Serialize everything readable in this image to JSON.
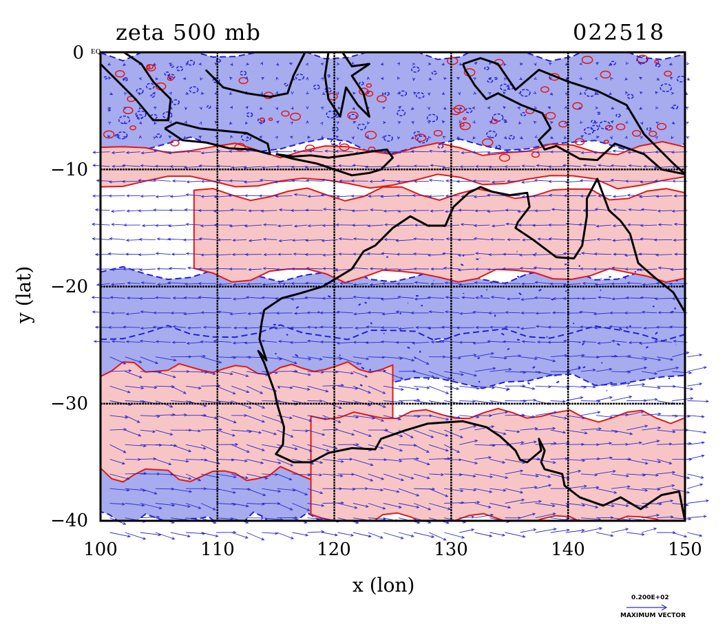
{
  "chart_data": {
    "type": "map",
    "title_left": "zeta 500 mb",
    "title_right": "022518",
    "xlabel": "x (lon)",
    "ylabel": "y (lat)",
    "xlim": [
      100,
      150
    ],
    "ylim": [
      -40,
      0
    ],
    "x_ticks": [
      "100",
      "110",
      "120",
      "130",
      "140",
      "150"
    ],
    "y_ticks": [
      "0",
      "−10",
      "−20",
      "−30",
      "−40"
    ],
    "zero_label_extra": "EQ",
    "grid_lon": [
      110,
      120,
      130,
      140
    ],
    "grid_lat": [
      -10,
      -20,
      -30
    ],
    "vector_legend": {
      "value": "0.200E+02",
      "label": "MAXIMUM VECTOR"
    },
    "colors": {
      "positive_fill": "#f7c5c5",
      "positive_line": "#e01818",
      "negative_fill": "#a6acee",
      "negative_line": "#2020d8",
      "vector": "#2a2ad0",
      "coast": "#000000",
      "grid": "#000000"
    },
    "positive_bands": [
      {
        "lon": [
          100,
          150
        ],
        "lat": [
          -8.3,
          -11
        ]
      },
      {
        "lon": [
          108,
          150
        ],
        "lat": [
          -12,
          -19
        ]
      },
      {
        "lon": [
          100,
          125
        ],
        "lat": [
          -27,
          -36
        ]
      },
      {
        "lon": [
          118,
          150
        ],
        "lat": [
          -31,
          -40
        ]
      }
    ],
    "negative_bands": [
      {
        "lon": [
          100,
          150
        ],
        "lat": [
          0,
          -8
        ]
      },
      {
        "lon": [
          100,
          150
        ],
        "lat": [
          -19,
          -25
        ]
      },
      {
        "lon": [
          100,
          150
        ],
        "lat": [
          -24,
          -28
        ]
      },
      {
        "lon": [
          100,
          120
        ],
        "lat": [
          -35,
          -40
        ]
      }
    ]
  }
}
